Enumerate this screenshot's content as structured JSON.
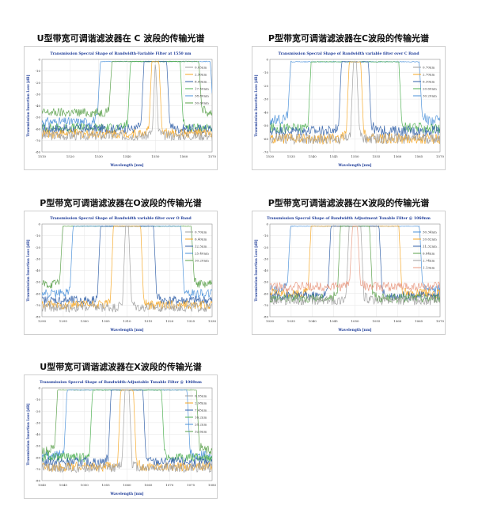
{
  "chart_data": [
    {
      "panel_title": "U型带宽可调谐滤波器在 C 波段的传输光谱",
      "type": "line",
      "title": "Transmission Specral Shape of Bandwidth-Variable Filter at 1550 nm",
      "xlabel": "Wavelength [nm]",
      "ylabel": "Transmission Insertion Loss [dB]",
      "xlim": [
        1510,
        1570
      ],
      "ylim": [
        -80,
        0
      ],
      "xticks": [
        "1510",
        "1520",
        "1530",
        "1540",
        "1550",
        "1560",
        "1570"
      ],
      "yticks": [
        "0",
        "-10",
        "-20",
        "-30",
        "-40",
        "-50",
        "-60",
        "-70",
        "-80"
      ],
      "center": 1550,
      "legend_position": "right",
      "grid": true,
      "series": [
        {
          "name": "0.05nm",
          "color": "#9e9e9e",
          "width_nm": 0.05,
          "floor": -72
        },
        {
          "name": "2.50nm",
          "color": "#f5a623",
          "width_nm": 2.5,
          "floor": -70
        },
        {
          "name": "8.00nm",
          "color": "#2f5fa8",
          "width_nm": 8.0,
          "floor": -66
        },
        {
          "name": "17.50nm",
          "color": "#4caf50",
          "width_nm": 17.5,
          "floor": -65
        },
        {
          "name": "38.80nm",
          "color": "#4a90d9",
          "width_nm": 38.8,
          "floor": -60
        },
        {
          "name": "30.60nm",
          "color": "#5aa04a",
          "width_nm": 30.6,
          "floor": -52
        }
      ]
    },
    {
      "panel_title": "P型带宽可调谐滤波器在C波段的传输光谱",
      "type": "line",
      "title": "Transmission Specral Shape of Bandwidth variable filter over C Band",
      "xlabel": "Wavelength [nm]",
      "ylabel": "Transmission Insertion Loss [dB]",
      "xlim": [
        1530,
        1570
      ],
      "ylim": [
        -70,
        0
      ],
      "xticks": [
        "1530",
        "1535",
        "1540",
        "1545",
        "1550",
        "1555",
        "1560",
        "1565",
        "1570"
      ],
      "yticks": [
        "0",
        "-10",
        "-20",
        "-30",
        "-40",
        "-50",
        "-60",
        "-70"
      ],
      "center": 1550,
      "legend_position": "right",
      "grid": true,
      "series": [
        {
          "name": "0.70nm",
          "color": "#9e9e9e",
          "width_nm": 0.7,
          "floor": -66
        },
        {
          "name": "2.70nm",
          "color": "#f5a623",
          "width_nm": 2.7,
          "floor": -66
        },
        {
          "name": "6.30nm",
          "color": "#2f5fa8",
          "width_nm": 6.3,
          "floor": -60
        },
        {
          "name": "20.60nm",
          "color": "#4caf50",
          "width_nm": 20.6,
          "floor": -58
        },
        {
          "name": "30.20nm",
          "color": "#4a90d9",
          "width_nm": 30.2,
          "floor": -52
        }
      ]
    },
    {
      "panel_title": "P型带宽可调谐滤波器在O波段的传输光谱",
      "type": "line",
      "title": "Transmission Specral Shape of Bandwidth variable filter over O Band",
      "xlabel": "Wavelength [nm]",
      "ylabel": "Transmission Insertion Loss [dB]",
      "xlim": [
        1290,
        1330
      ],
      "ylim": [
        -80,
        0
      ],
      "xticks": [
        "1290",
        "1295",
        "1300",
        "1305",
        "1310",
        "1315",
        "1320",
        "1325",
        "1330"
      ],
      "yticks": [
        "0",
        "-10",
        "-20",
        "-30",
        "-40",
        "-50",
        "-60",
        "-70",
        "-80"
      ],
      "center": 1310,
      "legend_position": "right",
      "grid": true,
      "series": [
        {
          "name": "0.70nm",
          "color": "#9e9e9e",
          "width_nm": 0.7,
          "floor": -78
        },
        {
          "name": "6.40nm",
          "color": "#f5a623",
          "width_nm": 6.4,
          "floor": -76
        },
        {
          "name": "12.5nm",
          "color": "#2f5fa8",
          "width_nm": 12.5,
          "floor": -72
        },
        {
          "name": "25.40nm",
          "color": "#4a90d9",
          "width_nm": 25.4,
          "floor": -66
        },
        {
          "name": "30.20nm",
          "color": "#5aa04a",
          "width_nm": 30.2,
          "floor": -58
        }
      ]
    },
    {
      "panel_title": "P型带宽可调谐滤波器在X波段的传输光谱",
      "type": "line",
      "title": "Transmission Specral Shape of Bandwidth Adjustment Tunable Filter @ 1060nm",
      "xlabel": "Wavelength [nm]",
      "ylabel": "Transmission Insertion Loss [dB]",
      "xlim": [
        1030,
        1070
      ],
      "ylim": [
        -80,
        0
      ],
      "xticks": [
        "1030",
        "1035",
        "1040",
        "1045",
        "1050",
        "1055",
        "1060",
        "1065",
        "1070"
      ],
      "yticks": [
        "0",
        "-10",
        "-20",
        "-30",
        "-40",
        "-50",
        "-60",
        "-70",
        "-80"
      ],
      "center": 1050,
      "legend_position": "right",
      "grid": true,
      "series": [
        {
          "name": "30.34nm",
          "color": "#4a90d9",
          "width_nm": 30.34,
          "floor": -62
        },
        {
          "name": "20.62nm",
          "color": "#f5a623",
          "width_nm": 20.62,
          "floor": -66
        },
        {
          "name": "11.32nm",
          "color": "#2f5fa8",
          "width_nm": 11.32,
          "floor": -68
        },
        {
          "name": "6.84nm",
          "color": "#5aa04a",
          "width_nm": 6.84,
          "floor": -70
        },
        {
          "name": "2.74nm",
          "color": "#9e9e9e",
          "width_nm": 2.74,
          "floor": -72
        },
        {
          "name": "1.13nm",
          "color": "#e89880",
          "width_nm": 1.13,
          "floor": -60
        }
      ]
    },
    {
      "panel_title": "U型带宽可调谐滤波器在X波段的传输光谱",
      "type": "line",
      "title": "Transmission Specral Shape of Bandwidth-Adjustable Tunable Filter @ 1060nm",
      "xlabel": "Wavelength [nm]",
      "ylabel": "Transmission Insertion Loss [dB]",
      "xlim": [
        1040,
        1080
      ],
      "ylim": [
        -80,
        0
      ],
      "xticks": [
        "1040",
        "1045",
        "1050",
        "1055",
        "1060",
        "1065",
        "1070",
        "1075",
        "1080"
      ],
      "yticks": [
        "0",
        "-10",
        "-20",
        "-30",
        "-40",
        "-50",
        "-60",
        "-70",
        "-80"
      ],
      "center": 1060,
      "legend_position": "right",
      "grid": true,
      "series": [
        {
          "name": "0.95nm",
          "color": "#9e9e9e",
          "width_nm": 0.95,
          "floor": -75
        },
        {
          "name": "2.98nm",
          "color": "#f5a623",
          "width_nm": 2.98,
          "floor": -74
        },
        {
          "name": "7.45nm",
          "color": "#2f5fa8",
          "width_nm": 7.45,
          "floor": -70
        },
        {
          "name": "16.2nm",
          "color": "#4caf50",
          "width_nm": 16.2,
          "floor": -66
        },
        {
          "name": "28.2nm",
          "color": "#4a90d9",
          "width_nm": 28.2,
          "floor": -64
        },
        {
          "name": "32.6nm",
          "color": "#5aa04a",
          "width_nm": 32.6,
          "floor": -60
        }
      ]
    }
  ]
}
